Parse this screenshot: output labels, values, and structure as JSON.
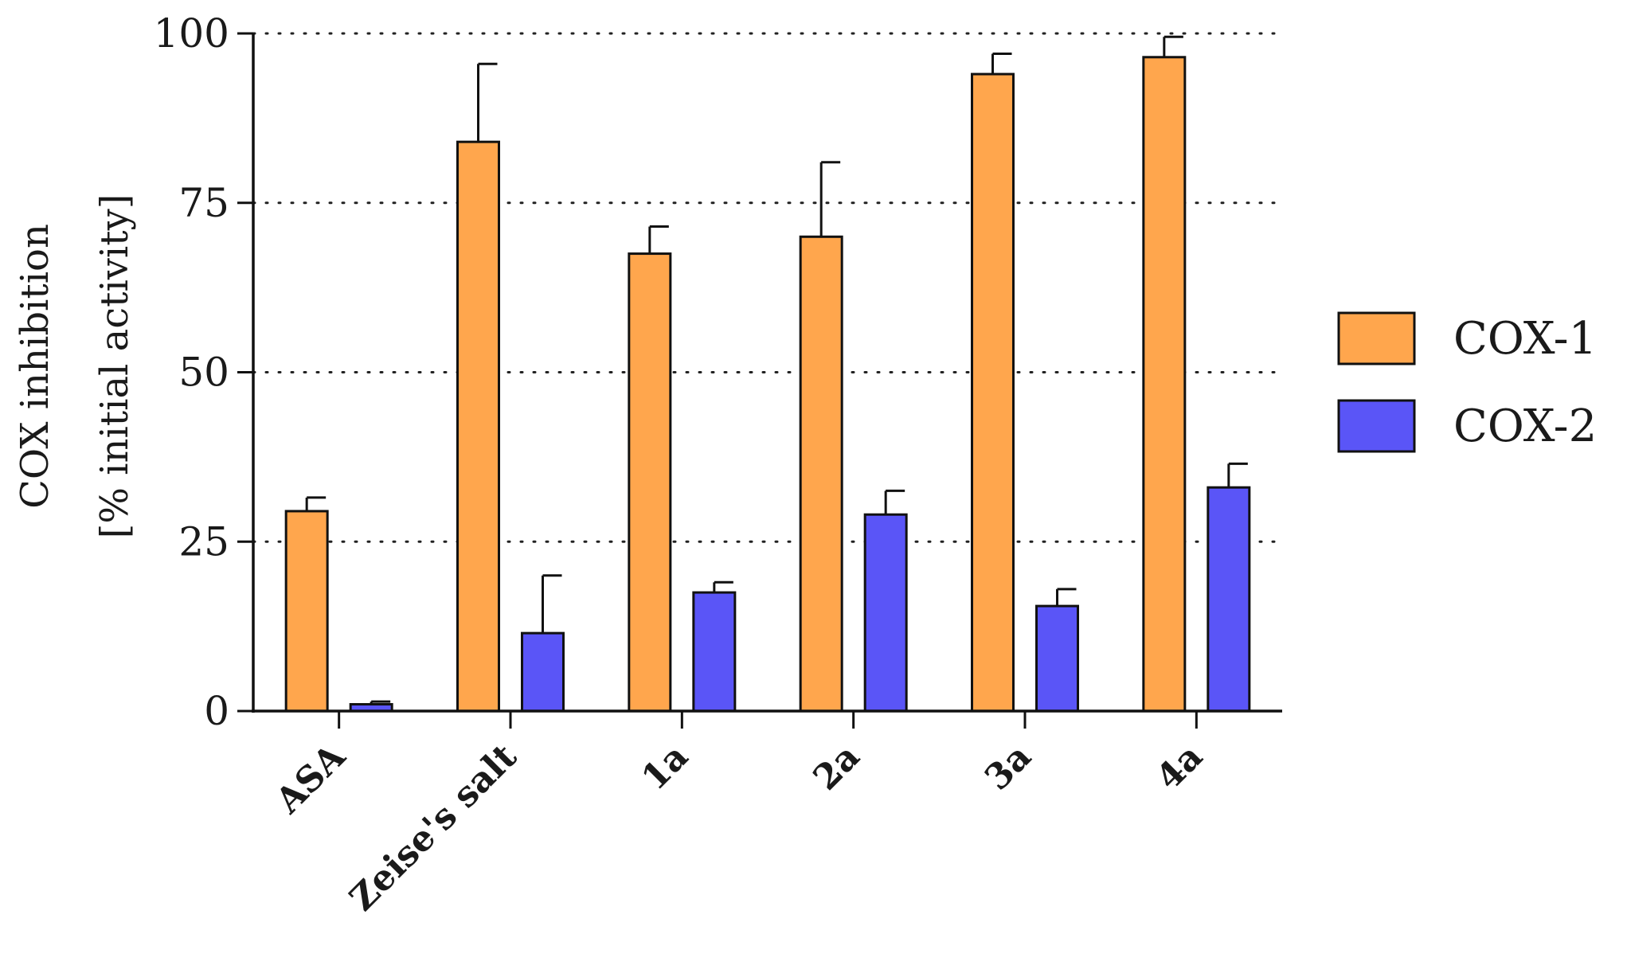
{
  "chart_data": {
    "type": "bar",
    "ylabel_line1": "COX inhibition",
    "ylabel_line2": "[% initial activity]",
    "ylim": [
      0,
      100
    ],
    "yticks": [
      0,
      25,
      50,
      75,
      100
    ],
    "grid": "horizontal dotted",
    "legend_position": "right",
    "categories": [
      "ASA",
      "Zeise's salt",
      "1a",
      "2a",
      "3a",
      "4a"
    ],
    "series": [
      {
        "name": "COX-1",
        "color": "#FFA64D",
        "values": [
          29.5,
          84,
          67.5,
          70,
          94,
          96.5
        ],
        "errors": [
          2,
          11.5,
          4,
          11,
          3,
          3
        ]
      },
      {
        "name": "COX-2",
        "color": "#5A55F7",
        "values": [
          1,
          11.5,
          17.5,
          29,
          15.5,
          33
        ],
        "errors": [
          0.4,
          8.5,
          1.5,
          3.5,
          2.5,
          3.5
        ]
      }
    ]
  }
}
